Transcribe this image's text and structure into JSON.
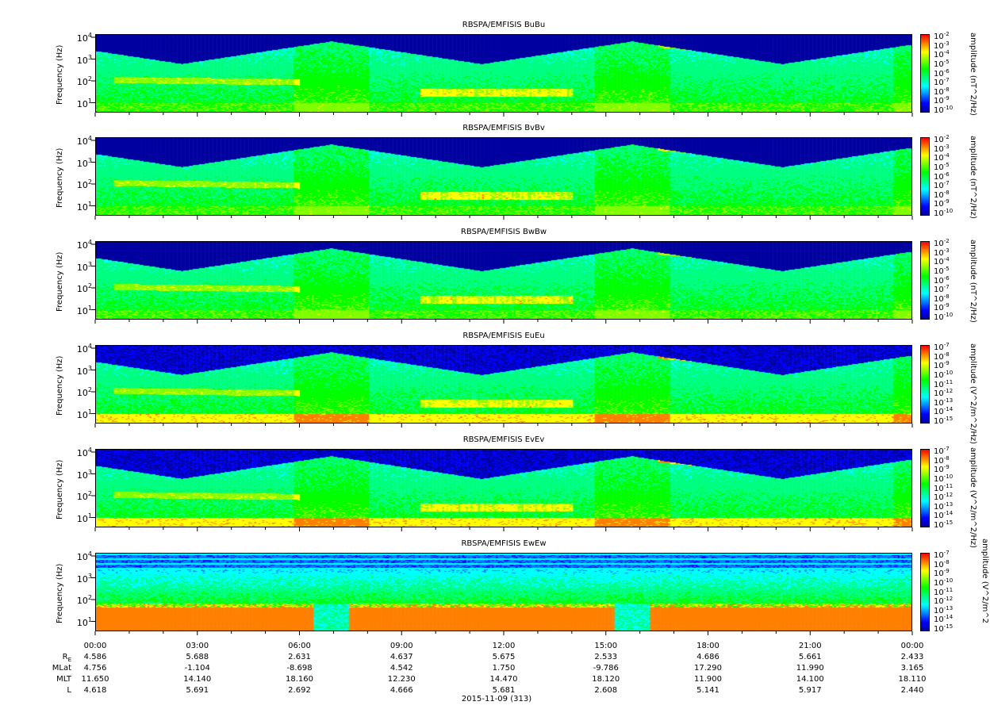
{
  "chart_data": [
    {
      "type": "heatmap",
      "title": "RBSPA/EMFISIS  BuBu",
      "ylabel": "Frequency (Hz)",
      "ylim": [
        2,
        12000
      ],
      "yscale": "log",
      "yticks": [
        "4",
        "3",
        "2",
        "1"
      ],
      "colorbar_label": "amplitude (nT^2/Hz)",
      "colorbar_ticks": [
        "-2",
        "-3",
        "-4",
        "-5",
        "-6",
        "-7",
        "-8",
        "-9",
        "-10"
      ],
      "variant": "b"
    },
    {
      "type": "heatmap",
      "title": "RBSPA/EMFISIS  BvBv",
      "ylabel": "Frequency (Hz)",
      "ylim": [
        2,
        12000
      ],
      "yscale": "log",
      "yticks": [
        "4",
        "3",
        "2",
        "1"
      ],
      "colorbar_label": "amplitude (nT^2/Hz)",
      "colorbar_ticks": [
        "-2",
        "-3",
        "-4",
        "-5",
        "-6",
        "-7",
        "-8",
        "-9",
        "-10"
      ],
      "variant": "b"
    },
    {
      "type": "heatmap",
      "title": "RBSPA/EMFISIS  BwBw",
      "ylabel": "Frequency (Hz)",
      "ylim": [
        2,
        12000
      ],
      "yscale": "log",
      "yticks": [
        "4",
        "3",
        "2",
        "1"
      ],
      "colorbar_label": "amplitude (nT^2/Hz)",
      "colorbar_ticks": [
        "-2",
        "-3",
        "-4",
        "-5",
        "-6",
        "-7",
        "-8",
        "-9",
        "-10"
      ],
      "variant": "b"
    },
    {
      "type": "heatmap",
      "title": "RBSPA/EMFISIS  EuEu",
      "ylabel": "Frequency (Hz)",
      "ylim": [
        2,
        12000
      ],
      "yscale": "log",
      "yticks": [
        "4",
        "3",
        "2",
        "1"
      ],
      "colorbar_label": "amplitude (V^2/m^2/Hz)",
      "colorbar_ticks": [
        "-7",
        "-8",
        "-9",
        "-10",
        "-11",
        "-12",
        "-13",
        "-14",
        "-15"
      ],
      "variant": "e"
    },
    {
      "type": "heatmap",
      "title": "RBSPA/EMFISIS  EvEv",
      "ylabel": "Frequency (Hz)",
      "ylim": [
        2,
        12000
      ],
      "yscale": "log",
      "yticks": [
        "4",
        "3",
        "2",
        "1"
      ],
      "colorbar_label": "amplitude (V^2/m^2/Hz)",
      "colorbar_ticks": [
        "-7",
        "-8",
        "-9",
        "-10",
        "-11",
        "-12",
        "-13",
        "-14",
        "-15"
      ],
      "variant": "e"
    },
    {
      "type": "heatmap",
      "title": "RBSPA/EMFISIS  EwEw",
      "ylabel": "Frequency (Hz)",
      "ylim": [
        2,
        12000
      ],
      "yscale": "log",
      "yticks": [
        "4",
        "3",
        "2",
        "1"
      ],
      "colorbar_label": "amplitude (V^2/m^2",
      "colorbar_ticks": [
        "-7",
        "-8",
        "-9",
        "-10",
        "-11",
        "-12",
        "-13",
        "-14",
        "-15"
      ],
      "variant": "w"
    }
  ],
  "x_axis": {
    "ticks": [
      "00:00",
      "03:00",
      "06:00",
      "09:00",
      "12:00",
      "15:00",
      "18:00",
      "21:00",
      "00:00"
    ],
    "date_label": "2015-11-09 (313)"
  },
  "ephemeris": [
    {
      "label": "R",
      "sub": "E",
      "values": [
        "4.586",
        "5.688",
        "2.631",
        "4.637",
        "5.675",
        "2.533",
        "4.686",
        "5.661",
        "2.433"
      ]
    },
    {
      "label": "MLat",
      "sub": "",
      "values": [
        "4.756",
        "-1.104",
        "-8.698",
        "4.542",
        "1.750",
        "-9.786",
        "17.290",
        "11.990",
        "3.165"
      ]
    },
    {
      "label": "MLT",
      "sub": "",
      "values": [
        "11.650",
        "14.140",
        "18.160",
        "12.230",
        "14.470",
        "18.120",
        "11.900",
        "14.100",
        "18.110"
      ]
    },
    {
      "label": "L",
      "sub": "",
      "values": [
        "4.618",
        "5.691",
        "2.692",
        "4.666",
        "5.681",
        "2.608",
        "5.141",
        "5.917",
        "2.440"
      ]
    }
  ],
  "colors": {
    "colormap": [
      "#0000a0",
      "#0000ff",
      "#0080ff",
      "#00ffff",
      "#00ff80",
      "#00ff00",
      "#80ff00",
      "#ffff00",
      "#ff8000",
      "#ff0000"
    ]
  }
}
